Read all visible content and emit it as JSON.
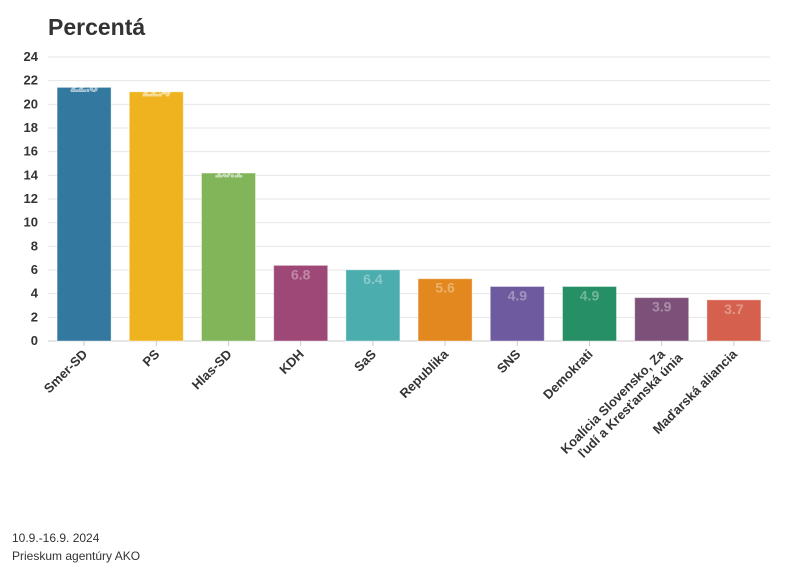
{
  "chart_data": {
    "type": "bar",
    "title": "Percentá",
    "categories": [
      "Smer-SD",
      "PS",
      "Hlas-SD",
      "KDH",
      "SaS",
      "Republika",
      "SNS",
      "Demokrati",
      "Koalícia Slovensko, Za ľudí a Kresťanská únia",
      "Maďarská aliancia"
    ],
    "values": [
      22.8,
      22.4,
      15.1,
      6.8,
      6.4,
      5.6,
      4.9,
      4.9,
      3.9,
      3.7
    ],
    "data_labels": [
      "22.8",
      "22.4",
      "15.1",
      "6.8",
      "6.4",
      "5.6",
      "4.9",
      "4.9",
      "3.9",
      "3.7"
    ],
    "colors": [
      "#33789f",
      "#eeb31e",
      "#82b55a",
      "#9e4877",
      "#4badad",
      "#e2881e",
      "#6e5a9e",
      "#278f65",
      "#7c5079",
      "#d4604d"
    ],
    "ylim": [
      0,
      24
    ],
    "yticks": [
      "0",
      "2",
      "4",
      "6",
      "8",
      "10",
      "12",
      "14",
      "16",
      "18",
      "20",
      "22",
      "24"
    ],
    "xlabel": "",
    "ylabel": "",
    "grid": true,
    "legend": "none"
  },
  "footer": {
    "date": "10.9.-16.9. 2024",
    "source": "Prieskum agentúry AKO"
  }
}
